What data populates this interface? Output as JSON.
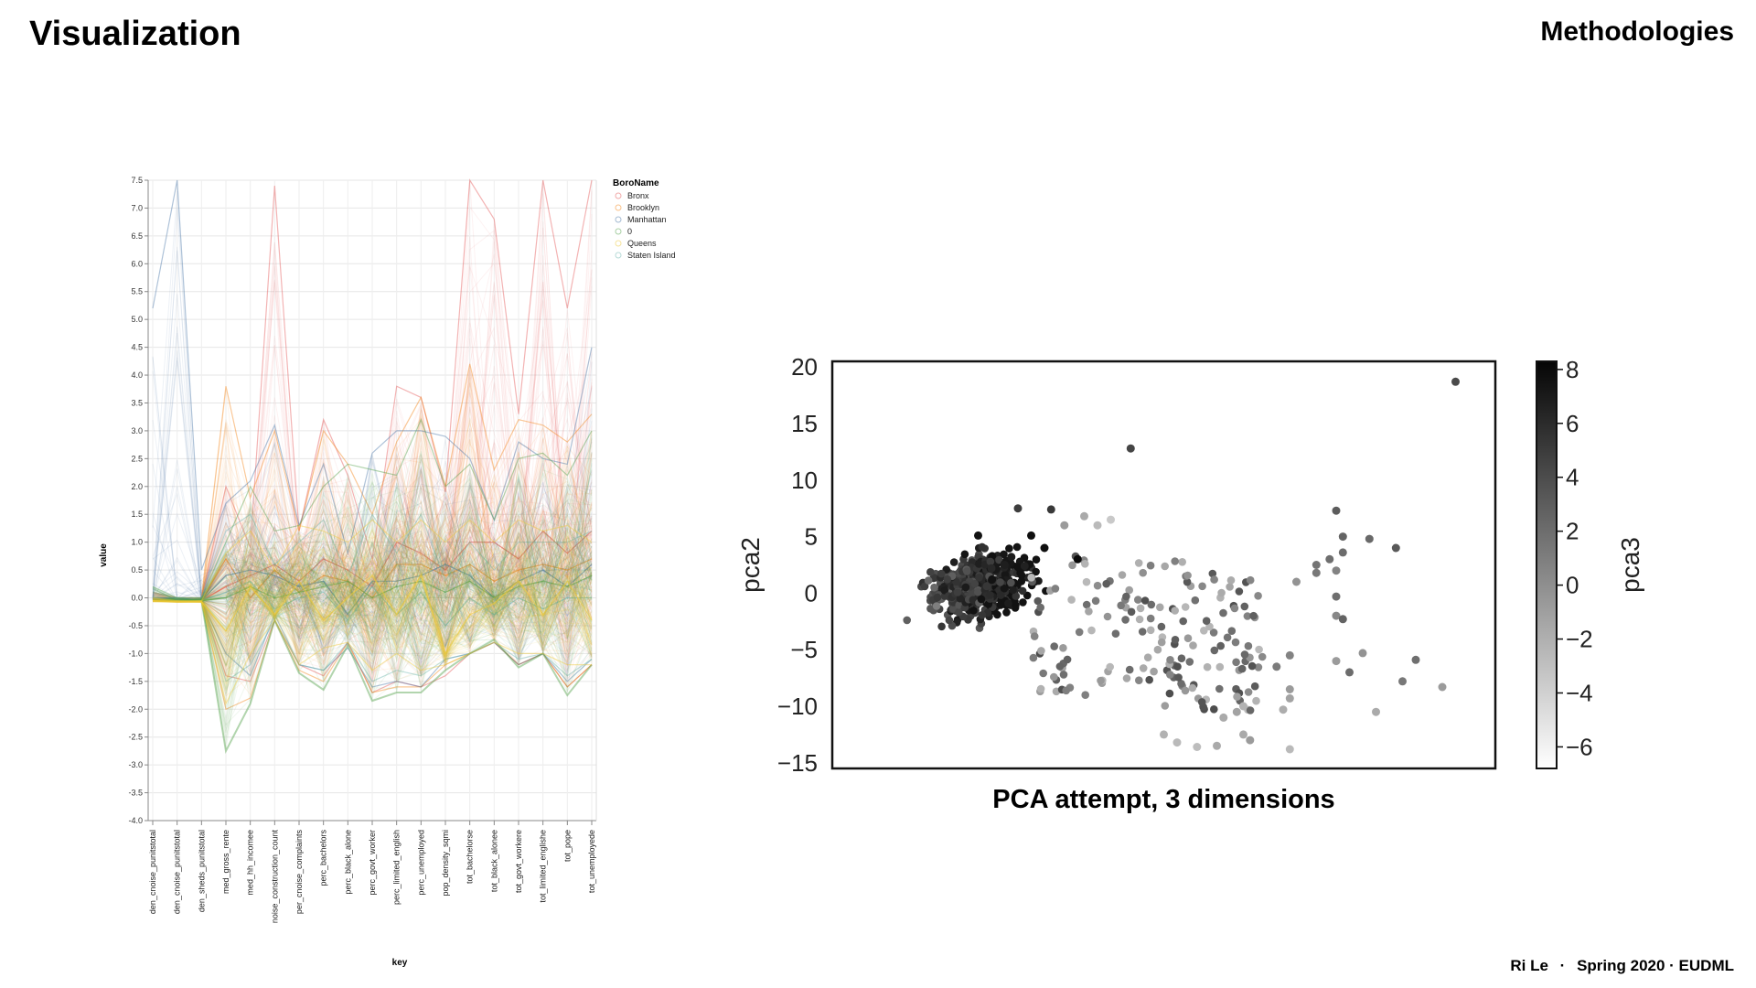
{
  "header": {
    "title": "Visualization",
    "section": "Methodologies"
  },
  "footer": {
    "author": "Ri Le",
    "separator": "·",
    "term": "Spring 2020 · EUDML"
  },
  "colors": {
    "Bronx": "#e45756",
    "Brooklyn": "#f58518",
    "Manhattan": "#4c78a8",
    "0": "#54a24b",
    "Queens": "#eeca3b",
    "Staten Island": "#72b7b2"
  },
  "chart_data": [
    {
      "type": "line",
      "subtype": "parallel-coordinates",
      "xlabel": "key",
      "ylabel": "value",
      "ylim": [
        -4.0,
        7.5
      ],
      "yticks": [
        "7.5",
        "7.0",
        "6.5",
        "6.0",
        "5.5",
        "5.0",
        "4.5",
        "4.0",
        "3.5",
        "3.0",
        "2.5",
        "2.0",
        "1.5",
        "1.0",
        "0.5",
        "0.0",
        "-0.5",
        "-1.0",
        "-1.5",
        "-2.0",
        "-2.5",
        "-3.0",
        "-3.5",
        "-4.0"
      ],
      "categories": [
        "den_cnoise_punitstotal",
        "den_cnoise_punitstotal",
        "den_sheds_punitstotal",
        "med_gross_rente",
        "med_hh_incomee",
        "noise_construction_count",
        "per_cnoise_complaints",
        "perc_bachelors",
        "perc_black_alone",
        "perc_govt_worker",
        "perc_limited_english",
        "perc_unemployed",
        "pop_density_sqmi",
        "tot_bachelorse",
        "tot_black_alonee",
        "tot_govt_workere",
        "tot_limited_englishe",
        "tot_pope",
        "tot_unemployede"
      ],
      "legend": {
        "title": "BoroName",
        "entries": [
          "Bronx",
          "Brooklyn",
          "Manhattan",
          "0",
          "Queens",
          "Staten Island"
        ],
        "position": "right"
      },
      "series": [
        {
          "name": "Bronx",
          "max": [
            0.1,
            0.0,
            0.0,
            2.0,
            0.9,
            7.4,
            1.2,
            3.2,
            2.2,
            0.7,
            3.8,
            3.6,
            1.9,
            7.5,
            6.8,
            3.3,
            7.5,
            5.2,
            7.5
          ],
          "mean": [
            -0.05,
            -0.05,
            -0.05,
            0.2,
            0.4,
            0.6,
            0.3,
            0.7,
            0.5,
            0.2,
            1.0,
            0.8,
            0.5,
            1.0,
            1.0,
            0.7,
            1.2,
            0.8,
            1.2
          ],
          "min": [
            -0.05,
            -0.05,
            -0.05,
            -1.4,
            -1.5,
            -0.4,
            -1.2,
            -1.4,
            -0.8,
            -1.7,
            -1.5,
            -1.6,
            -1.4,
            -1.0,
            -0.8,
            -1.2,
            -1.0,
            -1.6,
            -1.2
          ]
        },
        {
          "name": "Brooklyn",
          "max": [
            0.1,
            0.0,
            0.0,
            3.8,
            1.8,
            3.0,
            1.2,
            3.0,
            2.4,
            1.5,
            2.8,
            3.6,
            2.0,
            4.2,
            2.3,
            3.2,
            3.1,
            2.8,
            3.3
          ],
          "mean": [
            -0.05,
            -0.05,
            -0.05,
            0.7,
            0.0,
            0.5,
            0.1,
            0.4,
            0.3,
            0.0,
            0.6,
            0.6,
            0.4,
            0.6,
            0.3,
            0.5,
            0.6,
            0.5,
            0.7
          ],
          "min": [
            -0.05,
            -0.05,
            -0.05,
            -2.0,
            -1.8,
            -0.4,
            -1.3,
            -1.5,
            -0.8,
            -1.7,
            -1.6,
            -1.6,
            -1.2,
            -1.0,
            -0.8,
            -1.2,
            -1.0,
            -1.6,
            -1.2
          ]
        },
        {
          "name": "Manhattan",
          "max": [
            5.2,
            7.5,
            0.5,
            1.7,
            2.1,
            3.1,
            1.3,
            2.4,
            0.8,
            2.6,
            3.0,
            3.0,
            2.9,
            2.5,
            1.4,
            2.8,
            2.5,
            2.4,
            4.5
          ],
          "mean": [
            0.0,
            0.0,
            -0.05,
            0.4,
            0.5,
            0.4,
            0.2,
            0.3,
            -0.3,
            0.3,
            0.3,
            0.4,
            0.6,
            0.4,
            0.0,
            0.3,
            0.5,
            0.2,
            0.6
          ],
          "min": [
            -0.05,
            -0.05,
            -0.05,
            -1.0,
            -1.4,
            -0.3,
            -1.2,
            -1.3,
            -0.9,
            -1.6,
            -1.5,
            -1.6,
            -1.1,
            -1.0,
            -0.8,
            -1.2,
            -1.0,
            -1.5,
            -1.1
          ]
        },
        {
          "name": "0",
          "max": [
            0.2,
            0.0,
            0.0,
            1.0,
            2.0,
            1.2,
            1.3,
            2.0,
            2.4,
            2.3,
            2.2,
            3.2,
            2.0,
            2.4,
            1.4,
            2.5,
            2.6,
            2.2,
            3.0
          ],
          "mean": [
            -0.05,
            -0.05,
            -0.05,
            0.0,
            0.2,
            0.0,
            0.1,
            0.2,
            0.3,
            0.0,
            0.2,
            0.3,
            0.1,
            0.3,
            0.0,
            0.2,
            0.3,
            0.2,
            0.4
          ],
          "min": [
            -0.05,
            -0.05,
            -0.05,
            -2.75,
            -1.9,
            -0.4,
            -1.35,
            -1.65,
            -0.85,
            -1.85,
            -1.7,
            -1.7,
            -1.3,
            -1.0,
            -0.75,
            -1.25,
            -1.0,
            -1.75,
            -1.2
          ]
        },
        {
          "name": "Queens",
          "max": [
            0.0,
            -0.05,
            -0.05,
            0.8,
            1.2,
            0.5,
            1.3,
            1.2,
            1.0,
            1.4,
            1.0,
            1.4,
            1.0,
            1.4,
            1.0,
            1.4,
            1.2,
            1.3,
            1.0
          ],
          "mean": [
            -0.05,
            -0.07,
            -0.07,
            -0.6,
            0.2,
            -0.3,
            0.3,
            -0.4,
            0.0,
            0.4,
            -0.3,
            0.4,
            -1.0,
            -0.3,
            -0.1,
            0.3,
            -0.3,
            0.3,
            -0.4
          ],
          "min": [
            -0.07,
            -0.08,
            -0.08,
            -1.9,
            -1.0,
            -0.4,
            -1.2,
            -0.9,
            -0.8,
            -1.3,
            -1.0,
            -1.3,
            -1.2,
            -1.0,
            -0.8,
            -1.0,
            -1.0,
            -1.2,
            -1.2
          ]
        },
        {
          "name": "Staten Island",
          "max": [
            0.1,
            0.0,
            0.0,
            1.2,
            1.5,
            0.6,
            1.0,
            1.4,
            0.4,
            1.5,
            0.8,
            1.5,
            0.3,
            1.0,
            0.5,
            1.0,
            1.0,
            1.0,
            1.2
          ],
          "mean": [
            -0.05,
            -0.05,
            -0.05,
            0.1,
            0.3,
            -0.2,
            0.0,
            0.1,
            -0.4,
            0.2,
            -0.3,
            0.1,
            -0.5,
            0.0,
            -0.3,
            0.0,
            -0.2,
            0.0,
            0.0
          ],
          "min": [
            -0.05,
            -0.05,
            -0.05,
            -1.5,
            -1.2,
            -0.4,
            -1.2,
            -1.3,
            -0.8,
            -1.5,
            -1.3,
            -1.4,
            -1.1,
            -1.0,
            -0.8,
            -1.1,
            -1.0,
            -1.4,
            -1.1
          ]
        }
      ]
    },
    {
      "type": "scatter",
      "title": "PCA attempt, 3 dimensions",
      "xlabel": "",
      "ylabel": "pca2",
      "colorbar_label": "pca3",
      "colorbar_ticks": [
        8,
        6,
        4,
        2,
        0,
        -2,
        -4,
        -6
      ],
      "colorbar_range": [
        -6.8,
        8.3
      ],
      "ylim": [
        -15.5,
        20.5
      ],
      "yticks": [
        20,
        15,
        10,
        5,
        0,
        -5,
        -10,
        -15
      ],
      "xlim": [
        0,
        100
      ],
      "points": [
        {
          "x": 94,
          "y": 18.7,
          "c": 4.2
        },
        {
          "x": 45,
          "y": 12.8,
          "c": 4.5
        },
        {
          "x": 28,
          "y": 7.5,
          "c": 5.0
        },
        {
          "x": 33,
          "y": 7.4,
          "c": 5.3
        },
        {
          "x": 22,
          "y": 5.1,
          "c": 7.8
        },
        {
          "x": 30,
          "y": 5.1,
          "c": 8.0
        },
        {
          "x": 37,
          "y": 3.0,
          "c": 8.3
        },
        {
          "x": 32,
          "y": 4.0,
          "c": 8.0
        },
        {
          "x": 27,
          "y": 3.2,
          "c": 7.2
        },
        {
          "x": 26,
          "y": 2.5,
          "c": 7.0
        },
        {
          "x": 29,
          "y": 2.4,
          "c": 6.8
        },
        {
          "x": 24,
          "y": 2.2,
          "c": 6.4
        },
        {
          "x": 76,
          "y": 7.3,
          "c": 3.0
        },
        {
          "x": 77,
          "y": 5.0,
          "c": 2.5
        },
        {
          "x": 81,
          "y": 4.8,
          "c": 2.2
        },
        {
          "x": 85,
          "y": 4.0,
          "c": 3.2
        },
        {
          "x": 77,
          "y": 3.6,
          "c": 2.0
        },
        {
          "x": 75,
          "y": 3.0,
          "c": 1.8
        },
        {
          "x": 73,
          "y": 2.5,
          "c": 1.5
        },
        {
          "x": 73,
          "y": 1.8,
          "c": 1.2
        },
        {
          "x": 76,
          "y": 2.0,
          "c": 0.5
        },
        {
          "x": 70,
          "y": 1.0,
          "c": -0.5
        },
        {
          "x": 76,
          "y": -0.3,
          "c": 1.8
        },
        {
          "x": 76,
          "y": -2.0,
          "c": 0.2
        },
        {
          "x": 77,
          "y": -2.3,
          "c": 2.6
        },
        {
          "x": 78,
          "y": -7.0,
          "c": 2.0
        },
        {
          "x": 76,
          "y": -6.0,
          "c": -1.0
        },
        {
          "x": 67,
          "y": -6.5,
          "c": 1.0
        },
        {
          "x": 69,
          "y": -5.5,
          "c": 0.5
        },
        {
          "x": 69,
          "y": -8.5,
          "c": -1.0
        },
        {
          "x": 69,
          "y": -9.3,
          "c": -1.5
        },
        {
          "x": 68,
          "y": -10.3,
          "c": -2.2
        },
        {
          "x": 59,
          "y": -11.0,
          "c": -2.0
        },
        {
          "x": 61,
          "y": -10.5,
          "c": -1.5
        },
        {
          "x": 62,
          "y": -10.0,
          "c": -2.5
        },
        {
          "x": 63,
          "y": -13.0,
          "c": -1.0
        },
        {
          "x": 58,
          "y": -13.5,
          "c": -2.0
        },
        {
          "x": 50,
          "y": -12.5,
          "c": -2.5
        },
        {
          "x": 52,
          "y": -13.2,
          "c": -3.0
        },
        {
          "x": 55,
          "y": -13.6,
          "c": -3.2
        },
        {
          "x": 62,
          "y": -12.5,
          "c": -2.0
        },
        {
          "x": 69,
          "y": -13.8,
          "c": -3.0
        },
        {
          "x": 82,
          "y": -10.5,
          "c": -2.0
        },
        {
          "x": 88,
          "y": -5.9,
          "c": 1.8
        },
        {
          "x": 92,
          "y": -8.3,
          "c": -1.0
        },
        {
          "x": 80,
          "y": -5.3,
          "c": -0.5
        },
        {
          "x": 86,
          "y": -7.8,
          "c": 1.2
        },
        {
          "x": 42,
          "y": 6.5,
          "c": -4.0
        },
        {
          "x": 40,
          "y": 6.0,
          "c": -3.0
        },
        {
          "x": 38,
          "y": 6.8,
          "c": -2.0
        },
        {
          "x": 35,
          "y": 6.0,
          "c": -1.0
        }
      ],
      "cluster": {
        "center": [
          22,
          0.5
        ],
        "spread": [
          9,
          3.2
        ],
        "count": 520
      },
      "spray": {
        "x_range": [
          30,
          65
        ],
        "y_range": [
          -9,
          4
        ],
        "count": 170
      }
    }
  ]
}
